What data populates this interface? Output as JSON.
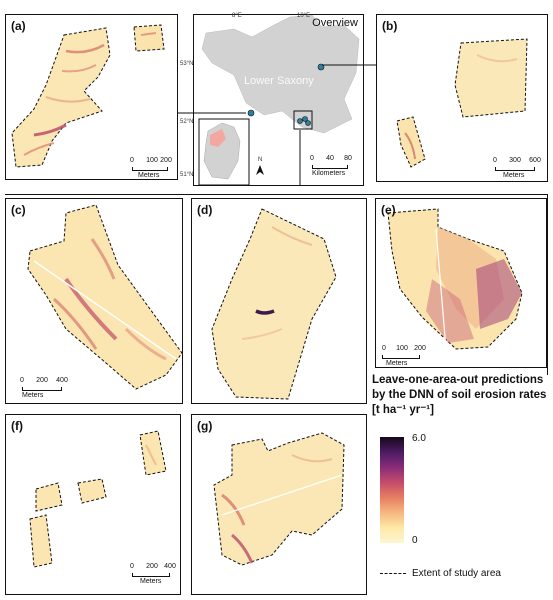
{
  "colors": {
    "low": "#fdf6d0",
    "mid": "#e77e63",
    "high": "#15091b",
    "landmass": "#d2d2d2",
    "marker": "#2f7fa0"
  },
  "panels": {
    "a": {
      "label": "(a)",
      "scale": {
        "ticks": [
          "0",
          "100",
          "200"
        ],
        "unit": "Meters"
      }
    },
    "b": {
      "label": "(b)",
      "scale": {
        "ticks": [
          "0",
          "300",
          "600"
        ],
        "unit": "Meters"
      }
    },
    "c": {
      "label": "(c)",
      "scale": {
        "ticks": [
          "0",
          "200",
          "400"
        ],
        "unit": "Meters"
      }
    },
    "d": {
      "label": "(d)"
    },
    "e": {
      "label": "(e)",
      "scale": {
        "ticks": [
          "0",
          "100",
          "200"
        ],
        "unit": "Meters"
      }
    },
    "f": {
      "label": "(f)",
      "scale": {
        "ticks": [
          "0",
          "200",
          "400"
        ],
        "unit": "Meters"
      }
    },
    "g": {
      "label": "(g)"
    }
  },
  "overview": {
    "title": "Overview",
    "region": "Lower Saxony",
    "lon_labels": [
      "8°E",
      "10°E"
    ],
    "lat_labels": [
      "53°N",
      "52°N",
      "51°N"
    ],
    "north": "N",
    "scale": {
      "ticks": [
        "0",
        "40",
        "80"
      ],
      "unit": "Kilometers"
    }
  },
  "legend": {
    "title": "Leave-one-area-out predictions by the DNN of soil erosion rates [t ha⁻¹ yr⁻¹]",
    "max": "6.0",
    "min": "0",
    "extent": "Extent of study area"
  }
}
